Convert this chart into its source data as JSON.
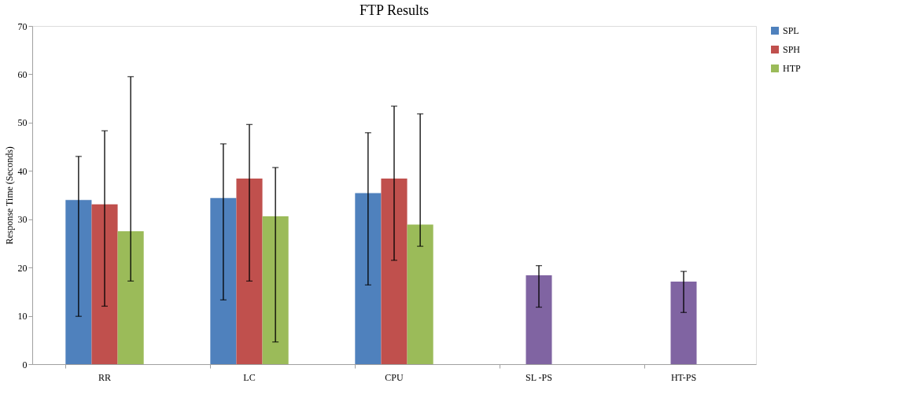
{
  "chart_data": {
    "type": "bar",
    "title": "FTP Results",
    "ylabel": "Response Time (Seconds)",
    "categories": [
      "RR",
      "LC",
      "CPU",
      "SL -PS",
      "HT-PS"
    ],
    "series": [
      {
        "name": "SPL",
        "color": "#4f81bd",
        "values": [
          34.0,
          34.4,
          35.4,
          null,
          null
        ],
        "errors": [
          [
            9.9,
            43.0
          ],
          [
            13.3,
            45.6
          ],
          [
            16.4,
            47.9
          ],
          null,
          null
        ]
      },
      {
        "name": "SPH",
        "color": "#c0504d",
        "values": [
          33.1,
          38.4,
          38.4,
          null,
          null
        ],
        "errors": [
          [
            12.0,
            48.3
          ],
          [
            17.2,
            49.6
          ],
          [
            21.5,
            53.4
          ],
          null,
          null
        ]
      },
      {
        "name": "HTP",
        "color": "#9bbb59",
        "values": [
          27.5,
          30.6,
          28.9,
          null,
          null
        ],
        "errors": [
          [
            17.2,
            59.5
          ],
          [
            4.6,
            40.7
          ],
          [
            24.4,
            51.8
          ],
          null,
          null
        ]
      },
      {
        "color": "#8064a2",
        "values": [
          null,
          null,
          null,
          18.4,
          17.1
        ],
        "errors": [
          null,
          null,
          null,
          [
            11.8,
            20.4
          ],
          [
            10.7,
            19.2
          ]
        ]
      }
    ],
    "ylim": [
      0,
      70
    ],
    "yticks": [
      0,
      10,
      20,
      30,
      40,
      50,
      60,
      70
    ],
    "grid": false,
    "legend": "right"
  }
}
